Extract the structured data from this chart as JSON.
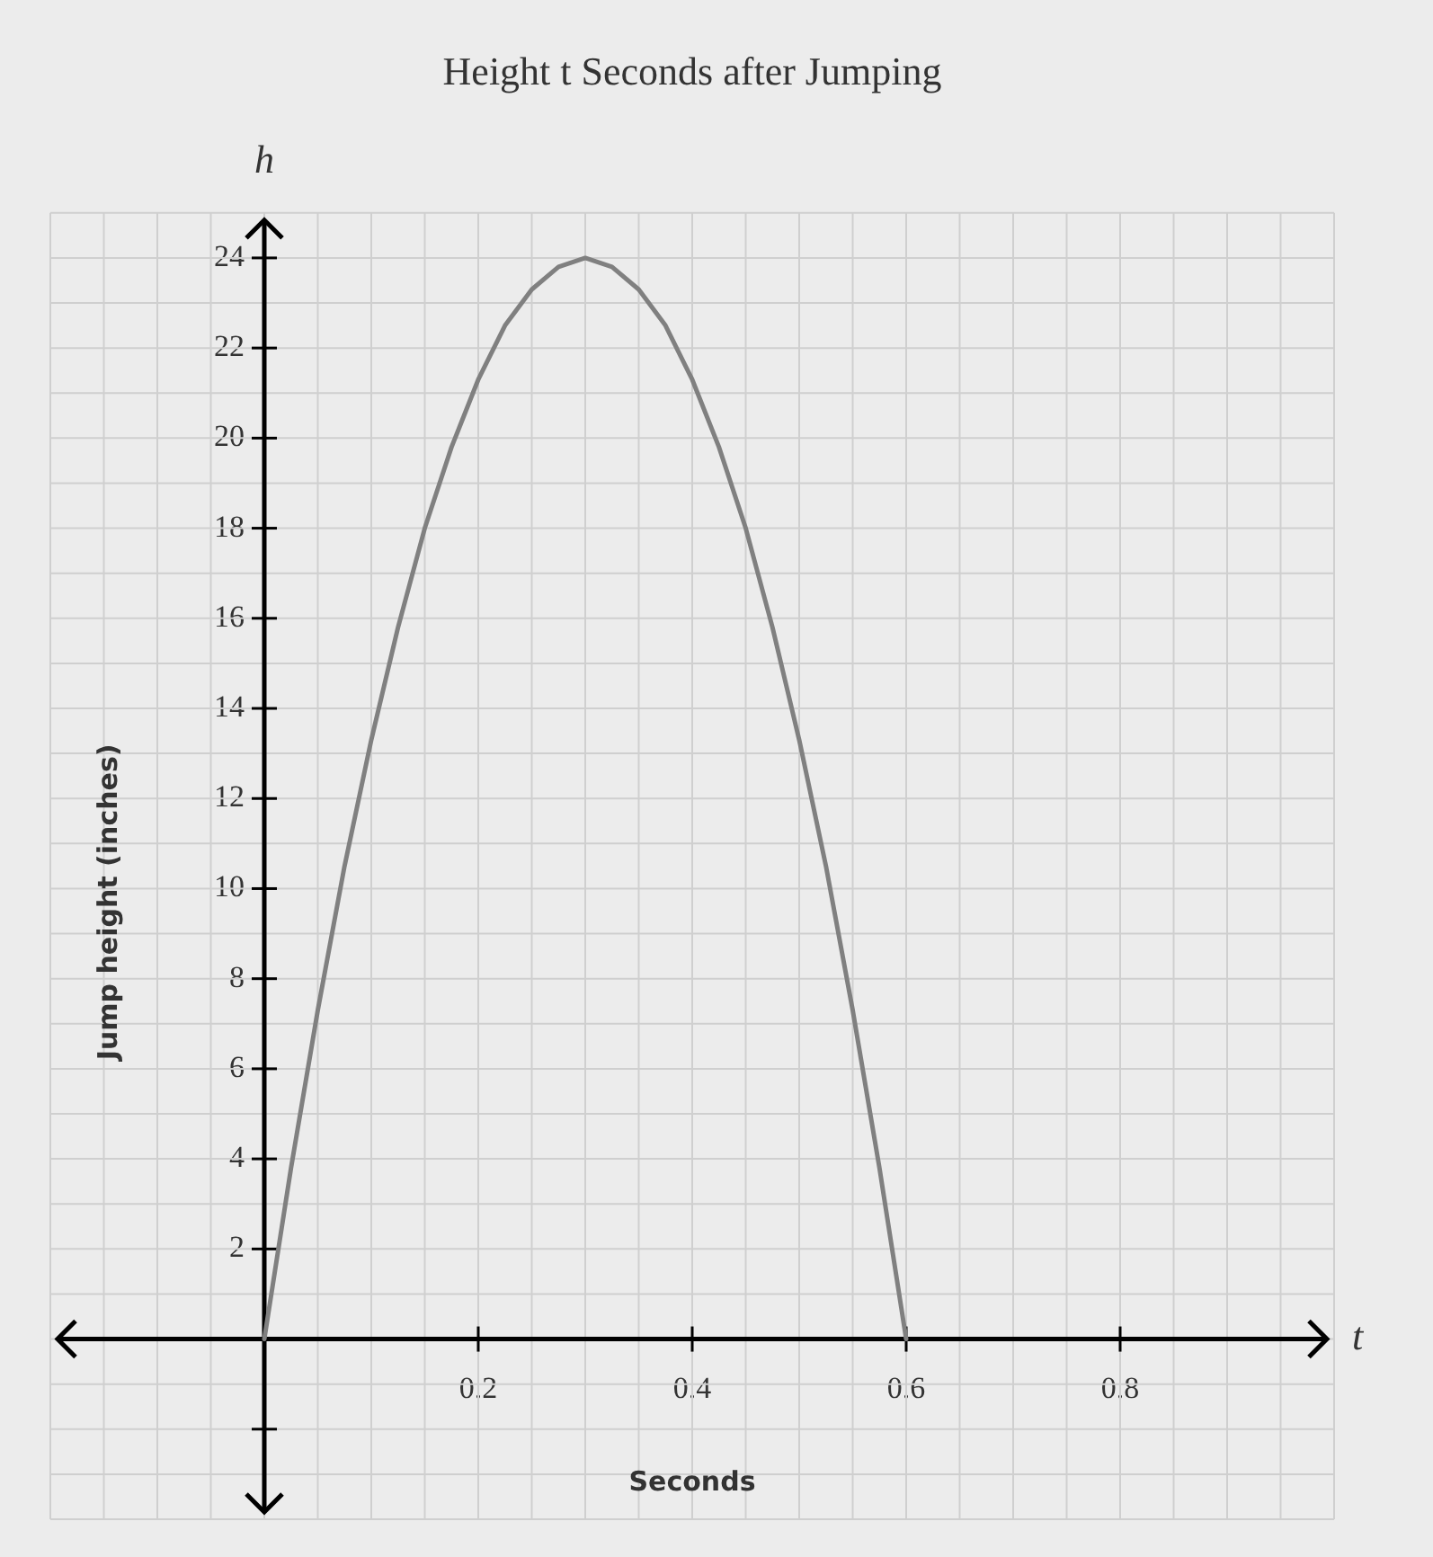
{
  "chart_data": {
    "type": "line",
    "title": "Height t Seconds after Jumping",
    "xlabel": "Seconds",
    "ylabel": "Jump height (inches)",
    "annotations": [
      "h",
      "t"
    ],
    "x": [
      0,
      0.025,
      0.05,
      0.075,
      0.1,
      0.125,
      0.15,
      0.175,
      0.2,
      0.225,
      0.25,
      0.275,
      0.3,
      0.325,
      0.35,
      0.375,
      0.4,
      0.425,
      0.45,
      0.475,
      0.5,
      0.525,
      0.55,
      0.575,
      0.6
    ],
    "series": [
      {
        "color": "#808080",
        "values": [
          0,
          3.8,
          7.3,
          10.5,
          13.3,
          15.8,
          18,
          19.8,
          21.3,
          22.5,
          23.3,
          23.8,
          24,
          23.8,
          23.3,
          22.5,
          21.3,
          19.8,
          18,
          15.8,
          13.3,
          10.5,
          7.3,
          3.8,
          0
        ]
      }
    ],
    "xlim": [
      -0.2,
      1.0
    ],
    "ylim": [
      -4,
      25
    ],
    "xticks": [
      0.2,
      0.4,
      0.6,
      0.8
    ],
    "yticks": [
      {
        "value": -2,
        "label": null
      },
      2,
      4,
      6,
      8,
      10,
      12,
      14,
      16,
      18,
      20,
      22,
      24
    ],
    "grid": true,
    "legend": false,
    "marker": "none",
    "line_style": "solid"
  }
}
